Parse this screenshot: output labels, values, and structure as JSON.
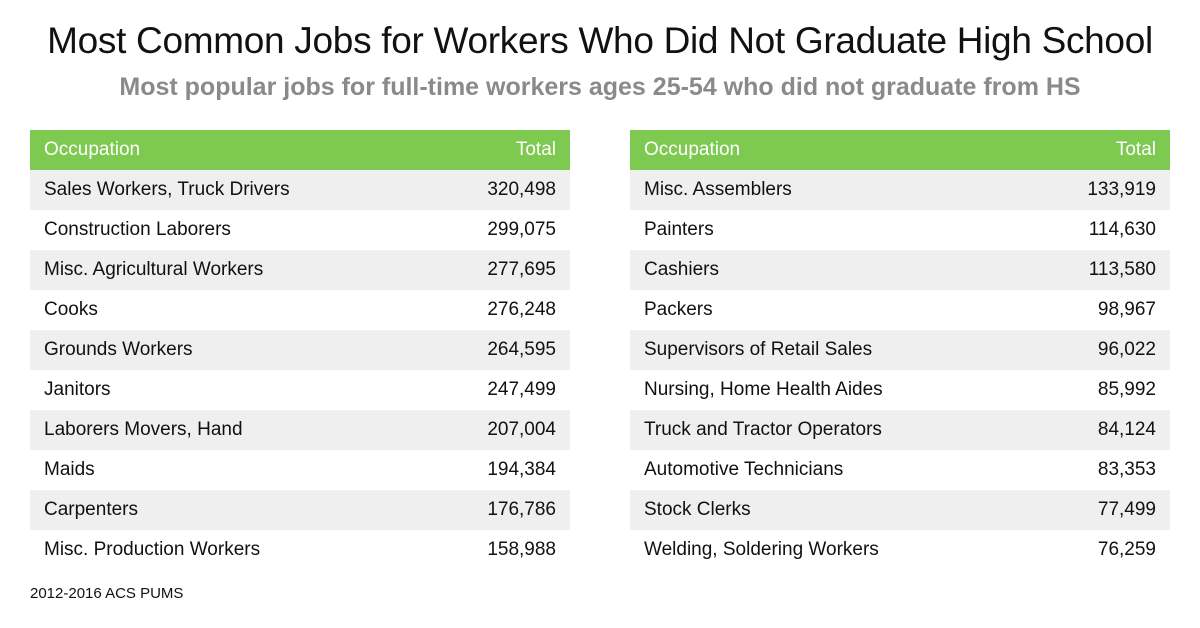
{
  "title": "Most Common Jobs for Workers Who Did Not Graduate High School",
  "subtitle": "Most popular jobs for full-time workers ages 25-54 who did not graduate from HS",
  "source": "2012-2016 ACS PUMS",
  "colors": {
    "header_bg": "#7ec950",
    "row_alt": "#efefef",
    "subtitle": "#8a8a8a"
  },
  "chart_data": [
    {
      "type": "table",
      "columns": [
        "Occupation",
        "Total"
      ],
      "rows": [
        [
          "Sales Workers, Truck Drivers",
          "320,498"
        ],
        [
          "Construction Laborers",
          "299,075"
        ],
        [
          "Misc. Agricultural Workers",
          "277,695"
        ],
        [
          "Cooks",
          "276,248"
        ],
        [
          "Grounds Workers",
          "264,595"
        ],
        [
          "Janitors",
          "247,499"
        ],
        [
          "Laborers Movers, Hand",
          "207,004"
        ],
        [
          "Maids",
          "194,384"
        ],
        [
          "Carpenters",
          "176,786"
        ],
        [
          "Misc. Production Workers",
          "158,988"
        ]
      ]
    },
    {
      "type": "table",
      "columns": [
        "Occupation",
        "Total"
      ],
      "rows": [
        [
          "Misc. Assemblers",
          "133,919"
        ],
        [
          "Painters",
          "114,630"
        ],
        [
          "Cashiers",
          "113,580"
        ],
        [
          "Packers",
          "98,967"
        ],
        [
          "Supervisors of Retail Sales",
          "96,022"
        ],
        [
          "Nursing, Home Health Aides",
          "85,992"
        ],
        [
          "Truck and Tractor Operators",
          "84,124"
        ],
        [
          "Automotive Technicians",
          "83,353"
        ],
        [
          "Stock Clerks",
          "77,499"
        ],
        [
          "Welding, Soldering Workers",
          "76,259"
        ]
      ]
    }
  ]
}
